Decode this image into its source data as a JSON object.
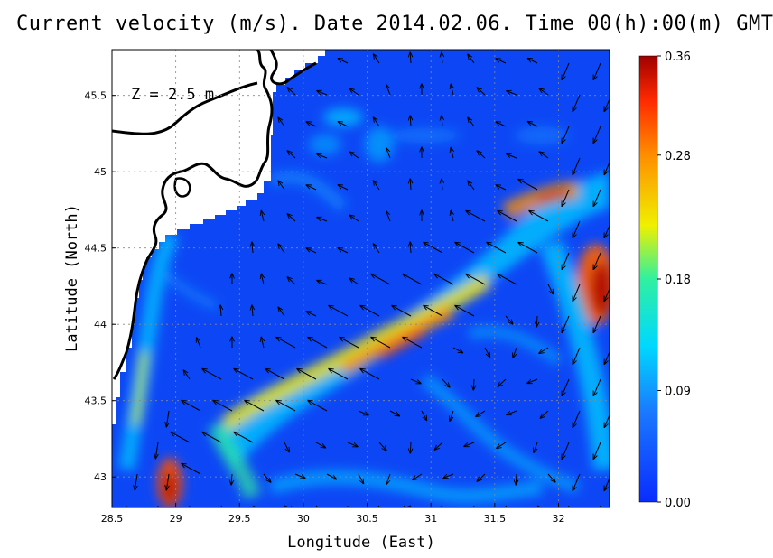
{
  "title": "Current velocity (m/s). Date 2014.02.06. Time 00(h):00(m) GMT",
  "depth_label": "Z = 2.5 m",
  "axes": {
    "xlabel": "Longitude (East)",
    "ylabel": "Latitude (North)",
    "xlim": [
      28.5,
      32.4
    ],
    "ylim": [
      42.8,
      45.8
    ],
    "xticks": [
      "28.5",
      "29",
      "29.5",
      "30",
      "30.5",
      "31",
      "31.5",
      "32"
    ],
    "yticks": [
      "43",
      "43.5",
      "44",
      "44.5",
      "45",
      "45.5"
    ],
    "grid": "dotted"
  },
  "colorbar": {
    "min": 0.0,
    "max": 0.36,
    "ticks": [
      "0.00",
      "0.09",
      "0.18",
      "0.28",
      "0.36"
    ],
    "colors": [
      "#1040ff",
      "#00e0ff",
      "#f0f000",
      "#ff7a00",
      "#a00000"
    ]
  },
  "land_color": "#ffffff",
  "coast_color": "#000000",
  "colors": {
    "water_low": "#0d47f5",
    "water_mid": "#1e78ff"
  }
}
